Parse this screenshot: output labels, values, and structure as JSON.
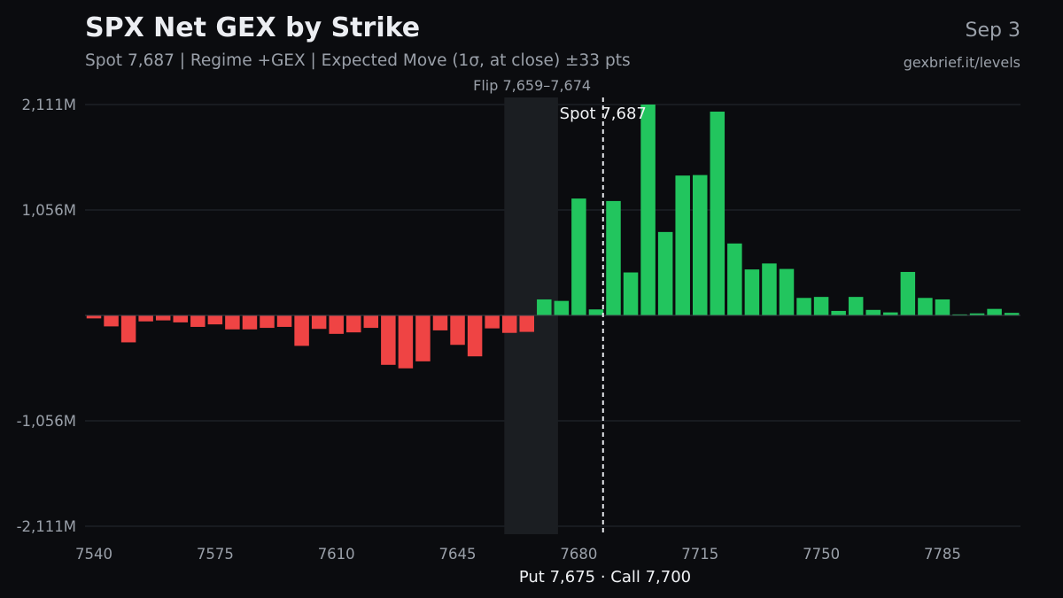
{
  "header": {
    "title": "SPX Net GEX by Strike",
    "subtitle": "Spot 7,687 | Regime +GEX | Expected Move (1σ, at close) ±33 pts",
    "date": "Sep 3",
    "source": "gexbrief.it/levels"
  },
  "chart_data": {
    "type": "bar",
    "title": "SPX Net GEX by Strike",
    "x_unit": "strike",
    "y_unit": "M",
    "x_ticks": [
      7540,
      7575,
      7610,
      7645,
      7680,
      7715,
      7750,
      7785
    ],
    "y_ticks": [
      {
        "value": 2111,
        "label": "2,111M"
      },
      {
        "value": 1056,
        "label": "1,056M"
      },
      {
        "value": -1056,
        "label": "-1,056M"
      },
      {
        "value": -2111,
        "label": "-2,111M"
      }
    ],
    "ylim": [
      -2200,
      2111
    ],
    "xlim": [
      7540,
      7805
    ],
    "strikes": [
      7540,
      7545,
      7550,
      7555,
      7560,
      7565,
      7570,
      7575,
      7580,
      7585,
      7590,
      7595,
      7600,
      7605,
      7610,
      7615,
      7620,
      7625,
      7630,
      7635,
      7640,
      7645,
      7650,
      7655,
      7660,
      7665,
      7670,
      7675,
      7680,
      7685,
      7690,
      7695,
      7700,
      7705,
      7710,
      7715,
      7720,
      7725,
      7730,
      7735,
      7740,
      7745,
      7750,
      7755,
      7760,
      7765,
      7770,
      7775,
      7780,
      7785,
      7790,
      7795,
      7800,
      7805
    ],
    "values": [
      -30,
      -110,
      -270,
      -60,
      -50,
      -70,
      -115,
      -90,
      -140,
      -140,
      -125,
      -115,
      -305,
      -135,
      -185,
      -170,
      -125,
      -495,
      -530,
      -460,
      -150,
      -295,
      -410,
      -130,
      -175,
      -165,
      160,
      145,
      1170,
      60,
      1145,
      430,
      2111,
      835,
      1400,
      1405,
      2040,
      720,
      460,
      520,
      465,
      175,
      185,
      45,
      185,
      55,
      30,
      435,
      175,
      160,
      10,
      20,
      65,
      25
    ],
    "flip_zone": {
      "low": 7659,
      "high": 7674,
      "label": "Flip 7,659–7,674"
    },
    "spot": {
      "value": 7687,
      "label": "Spot 7,687"
    },
    "walls": {
      "label": "Put 7,675 · Call 7,700"
    },
    "colors": {
      "positive": "#22c55e",
      "negative": "#ef4444",
      "flip_zone": "#1b1e22",
      "grid": "#262a31"
    },
    "grid": true
  }
}
